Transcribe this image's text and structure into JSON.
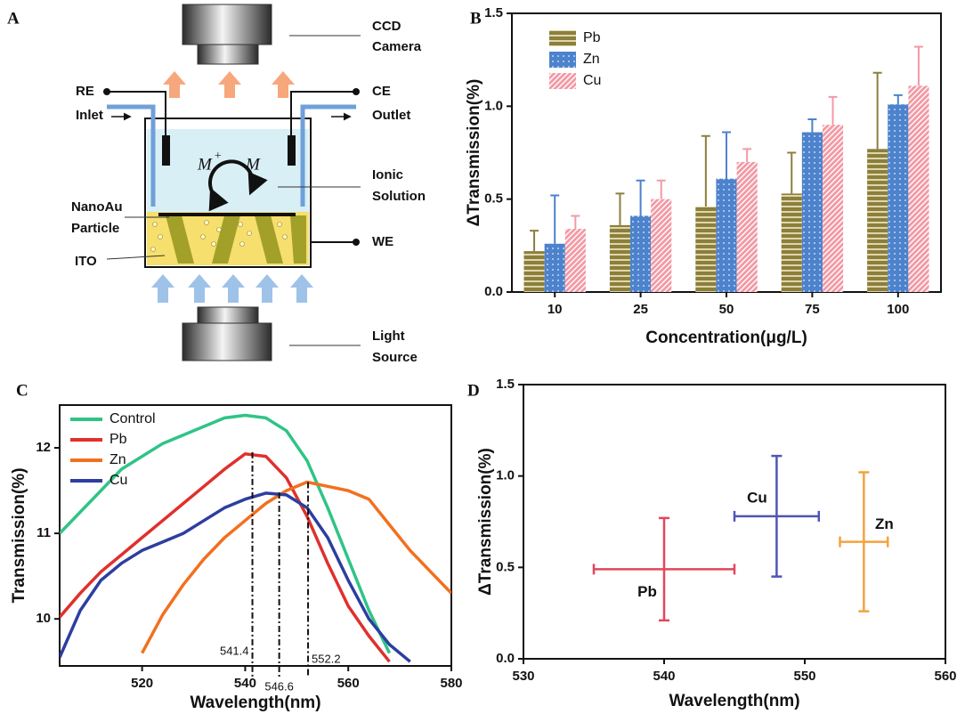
{
  "diagram": {
    "label": "A",
    "camera": [
      "CCD",
      "Camera"
    ],
    "re": "RE",
    "inlet": "Inlet",
    "ce": "CE",
    "outlet": "Outlet",
    "ion": "M",
    "ion_charge": "+",
    "metal": "M",
    "solution": [
      "Ionic",
      "Solution"
    ],
    "particle": [
      "NanoAu",
      "Particle"
    ],
    "ito": "ITO",
    "we": "WE",
    "light": [
      "Light",
      "Source"
    ]
  },
  "chart_data": [
    {
      "type": "bar",
      "label": "B",
      "xlabel": "Concentration(μg/L)",
      "ylabel": "ΔTransmission(%)",
      "categories": [
        "10",
        "25",
        "50",
        "75",
        "100"
      ],
      "series": [
        {
          "name": "Pb",
          "color": "#8c7f3c",
          "values": [
            0.22,
            0.36,
            0.46,
            0.53,
            0.77
          ],
          "errors": [
            0.11,
            0.17,
            0.38,
            0.22,
            0.41
          ]
        },
        {
          "name": "Zn",
          "color": "#4d82cc",
          "values": [
            0.26,
            0.41,
            0.61,
            0.86,
            1.01
          ],
          "errors": [
            0.26,
            0.19,
            0.25,
            0.07,
            0.05
          ]
        },
        {
          "name": "Cu",
          "color": "#f29aa5",
          "values": [
            0.34,
            0.5,
            0.7,
            0.9,
            1.11
          ],
          "errors": [
            0.07,
            0.1,
            0.07,
            0.15,
            0.21
          ]
        }
      ],
      "ylim": [
        0,
        1.5
      ],
      "yticks": [
        {
          "value": 0,
          "label": "0.0"
        },
        0.5,
        {
          "value": 1,
          "label": "1.0"
        },
        1.5
      ],
      "legend": "top-left"
    },
    {
      "type": "line",
      "label": "C",
      "xlabel": "Wavelength(nm)",
      "ylabel": "Transmission(%)",
      "x": [
        504,
        508,
        512,
        516,
        520,
        524,
        528,
        532,
        536,
        540,
        544,
        548,
        552,
        556,
        560,
        564,
        568,
        572,
        576,
        580
      ],
      "series": [
        {
          "name": "Control",
          "color": "#2fc486",
          "values": [
            11.0,
            11.25,
            11.5,
            11.75,
            11.9,
            12.05,
            12.15,
            12.25,
            12.35,
            12.38,
            12.35,
            12.2,
            11.85,
            11.3,
            10.7,
            10.1,
            9.6,
            null,
            null,
            null
          ]
        },
        {
          "name": "Pb",
          "color": "#e0302c",
          "values": [
            10.02,
            10.3,
            10.55,
            10.75,
            10.95,
            11.15,
            11.35,
            11.55,
            11.75,
            11.93,
            11.9,
            11.65,
            11.2,
            10.65,
            10.15,
            9.8,
            9.5,
            null,
            null,
            null
          ]
        },
        {
          "name": "Zn",
          "color": "#f2701e",
          "values": [
            null,
            null,
            null,
            null,
            9.6,
            10.05,
            10.4,
            10.7,
            10.95,
            11.15,
            11.35,
            11.5,
            11.6,
            11.55,
            11.5,
            11.4,
            11.1,
            10.8,
            10.55,
            10.3
          ]
        },
        {
          "name": "Cu",
          "color": "#2d3ea0",
          "values": [
            9.55,
            10.1,
            10.45,
            10.65,
            10.8,
            10.9,
            11.0,
            11.15,
            11.3,
            11.4,
            11.47,
            11.45,
            11.3,
            10.95,
            10.45,
            10.0,
            9.7,
            9.5,
            null,
            null
          ]
        }
      ],
      "peaks": {
        "x": [
          541.4,
          546.6,
          552.2
        ],
        "y": [
          11.95,
          11.48,
          11.6
        ]
      },
      "xlim": [
        504,
        580
      ],
      "xticks": [
        520,
        540,
        560,
        580
      ],
      "ylim": [
        9.45,
        12.5
      ],
      "yticks": [
        10,
        11,
        12
      ],
      "legend": "top-left"
    },
    {
      "type": "scatter",
      "label": "D",
      "xlabel": "Wavelength(nm)",
      "ylabel": "ΔTransmission(%)",
      "series": [
        {
          "name": "Pb",
          "color": "#e3465a",
          "x": [
            540
          ],
          "values": [
            0.49
          ],
          "xerr": [
            5
          ],
          "yerr": [
            0.28
          ]
        },
        {
          "name": "Cu",
          "color": "#5055b4",
          "x": [
            548
          ],
          "values": [
            0.78
          ],
          "xerr": [
            3
          ],
          "yerr": [
            0.33
          ]
        },
        {
          "name": "Zn",
          "color": "#f4a23e",
          "x": [
            554.2
          ],
          "values": [
            0.64
          ],
          "xerr": [
            1.7
          ],
          "yerr": [
            0.38
          ]
        }
      ],
      "xlim": [
        530,
        560
      ],
      "xticks": [
        530,
        540,
        550,
        560
      ],
      "ylim": [
        0,
        1.5
      ],
      "yticks": [
        {
          "value": 0,
          "label": "0.0"
        },
        0.5,
        {
          "value": 1,
          "label": "1.0"
        },
        1.5
      ]
    }
  ]
}
